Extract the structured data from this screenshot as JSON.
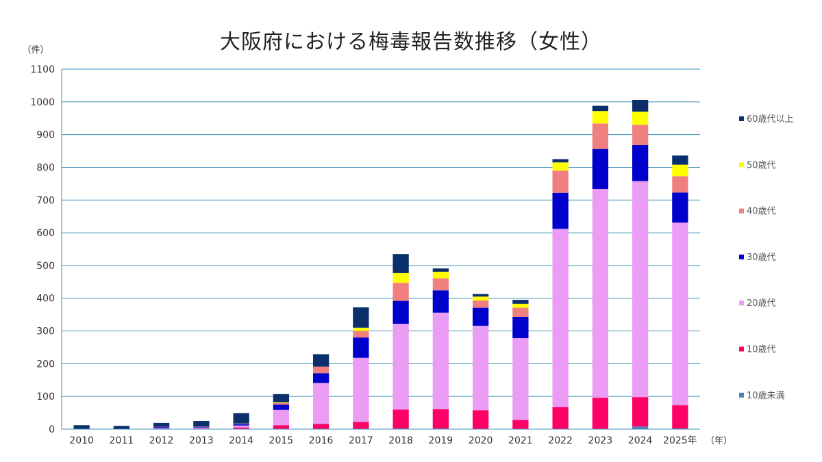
{
  "chart_data": {
    "type": "bar",
    "stacked": true,
    "title": "大阪府における梅毒報告数推移（女性）",
    "ylabel": "（件）",
    "xlabel": "（年）",
    "ylim": [
      0,
      1100
    ],
    "yticks": [
      0,
      100,
      200,
      300,
      400,
      500,
      600,
      700,
      800,
      900,
      1000,
      1100
    ],
    "grid": true,
    "legend_position": "right",
    "categories": [
      "2010",
      "2011",
      "2012",
      "2013",
      "2014",
      "2015",
      "2016",
      "2017",
      "2018",
      "2019",
      "2020",
      "2021",
      "2022",
      "2023",
      "2024",
      "2025年"
    ],
    "series": [
      {
        "name": "10歳未満",
        "color": "#4f81bd",
        "values": [
          0,
          0,
          0,
          0,
          0,
          0,
          0,
          0,
          2,
          2,
          1,
          1,
          1,
          1,
          8,
          2
        ]
      },
      {
        "name": "10歳代",
        "color": "#ff0066",
        "values": [
          0,
          0,
          1,
          2,
          5,
          12,
          16,
          22,
          58,
          59,
          57,
          27,
          66,
          95,
          90,
          71
        ]
      },
      {
        "name": "20歳代",
        "color": "#eb9cf5",
        "values": [
          0,
          0,
          2,
          3,
          6,
          47,
          125,
          196,
          262,
          295,
          258,
          250,
          545,
          638,
          660,
          558
        ]
      },
      {
        "name": "30歳代",
        "color": "#0000cc",
        "values": [
          0,
          0,
          3,
          2,
          4,
          16,
          30,
          62,
          70,
          68,
          55,
          65,
          110,
          122,
          110,
          92
        ]
      },
      {
        "name": "40歳代",
        "color": "#f08080",
        "values": [
          0,
          0,
          1,
          1,
          2,
          5,
          20,
          20,
          55,
          37,
          22,
          28,
          68,
          78,
          62,
          50
        ]
      },
      {
        "name": "50歳代",
        "color": "#ffff00",
        "values": [
          0,
          0,
          0,
          0,
          0,
          2,
          0,
          10,
          30,
          20,
          12,
          12,
          25,
          38,
          40,
          35
        ]
      },
      {
        "name": "60歳代以上",
        "color": "#0b2f6b",
        "values": [
          12,
          10,
          12,
          17,
          32,
          25,
          38,
          62,
          58,
          10,
          8,
          12,
          10,
          16,
          36,
          28
        ]
      }
    ]
  }
}
